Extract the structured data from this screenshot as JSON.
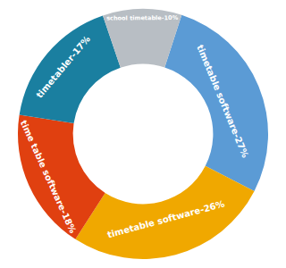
{
  "chart_data": {
    "type": "pie",
    "categories": [
      "timetable software-27%",
      "timetable software-26%",
      "time table software-18%",
      "timetabler-17%",
      "school timetable-10%"
    ],
    "values": [
      27,
      26,
      18,
      17,
      10
    ],
    "colors": [
      "#5b9bd5",
      "#f0a800",
      "#e04010",
      "#1a7fa0",
      "#b8bec4"
    ]
  }
}
